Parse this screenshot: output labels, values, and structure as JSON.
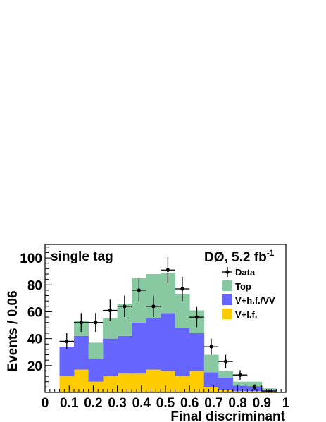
{
  "chart_data": {
    "type": "bar",
    "stacked": true,
    "xlabel": "Final discriminant",
    "ylabel": "Events / 0.06",
    "xlim": [
      0,
      1
    ],
    "ylim": [
      0,
      110
    ],
    "x_ticks": [
      "0",
      "0.1",
      "0.2",
      "0.3",
      "0.4",
      "0.5",
      "0.6",
      "0.7",
      "0.8",
      "0.9",
      "1"
    ],
    "y_ticks": [
      "20",
      "40",
      "60",
      "80",
      "100"
    ],
    "corner_label": "single tag",
    "experiment_label": "DØ, 5.2 fb",
    "experiment_label_sup": "-1",
    "bin_edges": [
      0.06,
      0.12,
      0.18,
      0.24,
      0.3,
      0.36,
      0.42,
      0.48,
      0.54,
      0.6,
      0.66,
      0.72,
      0.78,
      0.84,
      0.9,
      0.96
    ],
    "series": [
      {
        "name": "V+l.f.",
        "color": "#ffcc00",
        "values": [
          12,
          17,
          8,
          12,
          14,
          14,
          17,
          16,
          12,
          16,
          4,
          2,
          1,
          1,
          1
        ]
      },
      {
        "name": "V+h.f./VV",
        "color": "#6666ff",
        "values": [
          22,
          25,
          17,
          28,
          28,
          38,
          38,
          43,
          36,
          28,
          11,
          9,
          4,
          3,
          1
        ]
      },
      {
        "name": "Top",
        "color": "#88c9a1",
        "values": [
          0,
          11,
          12,
          15,
          24,
          33,
          33,
          30,
          25,
          17,
          13,
          5,
          3,
          4,
          1
        ]
      }
    ],
    "data_points": {
      "name": "Data",
      "x": [
        0.09,
        0.15,
        0.21,
        0.27,
        0.33,
        0.39,
        0.45,
        0.51,
        0.57,
        0.63,
        0.69,
        0.75,
        0.81,
        0.87,
        0.93
      ],
      "y": [
        38,
        52,
        52,
        61,
        64,
        76,
        64,
        91,
        77,
        56,
        34,
        23,
        13,
        4,
        1
      ],
      "err": [
        6,
        7,
        7,
        8,
        8,
        9,
        8,
        9.5,
        9,
        7.5,
        6,
        5,
        3.6,
        2,
        1
      ]
    },
    "legend_position": "top-right",
    "legend_entries": [
      "Data",
      "Top",
      "V+h.f./VV",
      "V+l.f."
    ]
  }
}
